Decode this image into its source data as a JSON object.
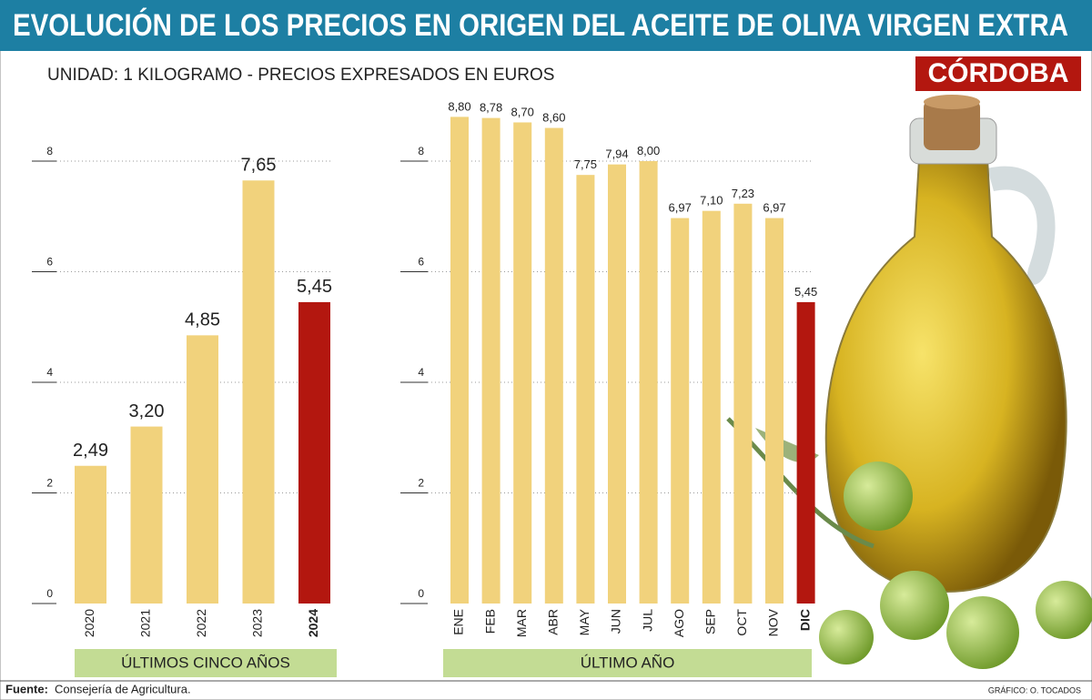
{
  "title": "EVOLUCIÓN DE LOS PRECIOS EN ORIGEN DEL ACEITE DE OLIVA VIRGEN EXTRA",
  "subtitle": "UNIDAD: 1 KILOGRAMO - PRECIOS EXPRESADOS EN EUROS",
  "logo": "CÓRDOBA",
  "source_label": "Fuente:",
  "source": "Consejería de Agricultura.",
  "credit": "GRÁFICO: O. TOCADOS",
  "chart_data": [
    {
      "type": "bar",
      "label": "ÚLTIMOS CINCO AÑOS",
      "categories": [
        "2020",
        "2021",
        "2022",
        "2023",
        "2024"
      ],
      "values": [
        2.49,
        3.2,
        4.85,
        7.65,
        5.45
      ],
      "value_labels": [
        "2,49",
        "3,20",
        "4,85",
        "7,65",
        "5,45"
      ],
      "colors": [
        "#f1d27c",
        "#f1d27c",
        "#f1d27c",
        "#f1d27c",
        "#b3170f"
      ],
      "ylim": [
        0,
        9
      ],
      "yticks": [
        0,
        2,
        4,
        6,
        8
      ],
      "grid": true
    },
    {
      "type": "bar",
      "label": "ÚLTIMO AÑO",
      "categories": [
        "ENE",
        "FEB",
        "MAR",
        "ABR",
        "MAY",
        "JUN",
        "JUL",
        "AGO",
        "SEP",
        "OCT",
        "NOV",
        "DIC"
      ],
      "values": [
        8.8,
        8.78,
        8.7,
        8.6,
        7.75,
        7.94,
        8.0,
        6.97,
        7.1,
        7.23,
        6.97,
        5.45
      ],
      "value_labels": [
        "8,80",
        "8,78",
        "8,70",
        "8,60",
        "7,75",
        "7,94",
        "8,00",
        "6,97",
        "7,10",
        "7,23",
        "6,97",
        "5,45"
      ],
      "colors": [
        "#f1d27c",
        "#f1d27c",
        "#f1d27c",
        "#f1d27c",
        "#f1d27c",
        "#f1d27c",
        "#f1d27c",
        "#f1d27c",
        "#f1d27c",
        "#f1d27c",
        "#f1d27c",
        "#b3170f"
      ],
      "ylim": [
        0,
        9
      ],
      "yticks": [
        0,
        2,
        4,
        6,
        8
      ],
      "grid": true
    }
  ]
}
